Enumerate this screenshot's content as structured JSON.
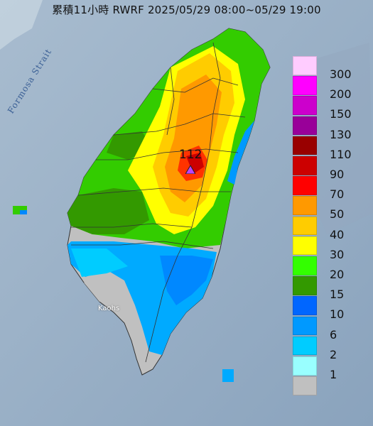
{
  "title": "累積11小時 RWRF 2025/05/29 08:00~05/29 19:00",
  "sea_label": "Formosa Strait",
  "city_label": "Kaohs",
  "max_value_label": "112",
  "legend": [
    {
      "label": "300",
      "color": "#ffccff"
    },
    {
      "label": "200",
      "color": "#ff00ff"
    },
    {
      "label": "150",
      "color": "#cc00cc"
    },
    {
      "label": "130",
      "color": "#990099"
    },
    {
      "label": "110",
      "color": "#990000"
    },
    {
      "label": "90",
      "color": "#cc0000"
    },
    {
      "label": "70",
      "color": "#ff0000"
    },
    {
      "label": "50",
      "color": "#ff9900"
    },
    {
      "label": "40",
      "color": "#ffcc00"
    },
    {
      "label": "30",
      "color": "#ffff00"
    },
    {
      "label": "20",
      "color": "#33ff00"
    },
    {
      "label": "15",
      "color": "#339900"
    },
    {
      "label": "10",
      "color": "#0066ff"
    },
    {
      "label": "6",
      "color": "#0099ff"
    },
    {
      "label": "2",
      "color": "#00ccff"
    },
    {
      "label": "1",
      "color": "#99ffff"
    },
    {
      "label": "",
      "color": "#c0c0c0"
    }
  ],
  "legend_values": [
    "300",
    "200",
    "150",
    "130",
    "110",
    "90",
    "70",
    "50",
    "40",
    "30",
    "20",
    "15",
    "10",
    "6",
    "2",
    "1"
  ]
}
